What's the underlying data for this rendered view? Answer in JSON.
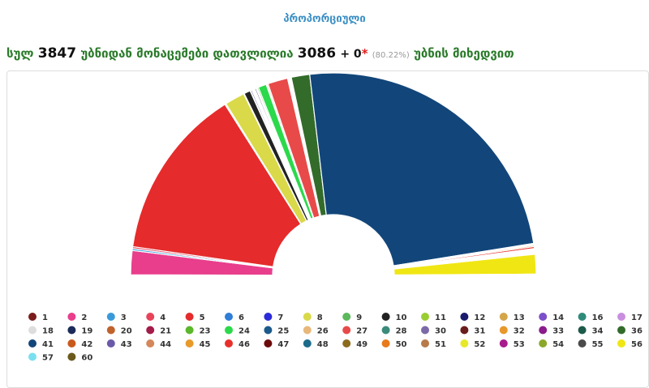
{
  "header": {
    "title": "პროპორციული",
    "summary": {
      "prefix": "სულ",
      "total": "3847",
      "middle": "უბნიდან მონაცემები დათვლილია",
      "counted": "3086",
      "extra": "+ 0",
      "star": "*",
      "percent": "(80.22%)",
      "suffix": "უბნის მიხედვით"
    }
  },
  "chart_data": {
    "type": "semi-donut",
    "categories": [
      "1",
      "2",
      "3",
      "4",
      "5",
      "6",
      "7",
      "8",
      "9",
      "10",
      "11",
      "12",
      "13",
      "14",
      "16",
      "17",
      "18",
      "19",
      "20",
      "21",
      "23",
      "24",
      "25",
      "26",
      "27",
      "28",
      "30",
      "31",
      "32",
      "33",
      "34",
      "36",
      "41",
      "42",
      "43",
      "44",
      "45",
      "46",
      "47",
      "48",
      "49",
      "50",
      "51",
      "52",
      "53",
      "54",
      "55",
      "56",
      "57",
      "60"
    ],
    "values": [
      0.1,
      3.8,
      0.3,
      0.3,
      27.2,
      0.1,
      0.1,
      3.15,
      0.1,
      1.0,
      0.1,
      0.2,
      0.1,
      0.1,
      0.1,
      0.1,
      0.1,
      0.2,
      0.1,
      0.1,
      0.2,
      1.3,
      0.1,
      0.2,
      3.15,
      0.1,
      0.1,
      0.1,
      0.1,
      0.1,
      0.1,
      2.9,
      48.2,
      0.1,
      0.1,
      0.1,
      0.2,
      0.3,
      0.1,
      0.1,
      0.1,
      0.1,
      0.1,
      0.1,
      0.1,
      0.1,
      0.1,
      3.1,
      0.1,
      0.1
    ],
    "colors": [
      "#7b1c1c",
      "#e83e8c",
      "#3a9ad9",
      "#e8435a",
      "#e52b2b",
      "#2f7ed8",
      "#2b2bd9",
      "#d9d94a",
      "#5cb85c",
      "#222222",
      "#9acd32",
      "#1a1a6e",
      "#d4a64a",
      "#7b4fc9",
      "#2e8b7a",
      "#c98ee0",
      "#dddddd",
      "#1c2b5a",
      "#c0622b",
      "#a31c4a",
      "#5cb82b",
      "#2bd94a",
      "#1c5a8b",
      "#e8b87a",
      "#e84a4a",
      "#3a8b7a",
      "#7a6aa8",
      "#6b1c1c",
      "#e8982b",
      "#8b1c8b",
      "#1c5a4a",
      "#336b2b",
      "#12467a",
      "#c85a1c",
      "#6a5aa8",
      "#d4875a",
      "#e89a2b",
      "#e8302b",
      "#6b0a0a",
      "#1c6b8b",
      "#8b6b1c",
      "#e87a1c",
      "#b87a4a",
      "#e8e82b",
      "#a81c8b",
      "#8ba82b",
      "#4a4a4a",
      "#f0e613",
      "#7ae0f0",
      "#6b5a1c"
    ]
  }
}
